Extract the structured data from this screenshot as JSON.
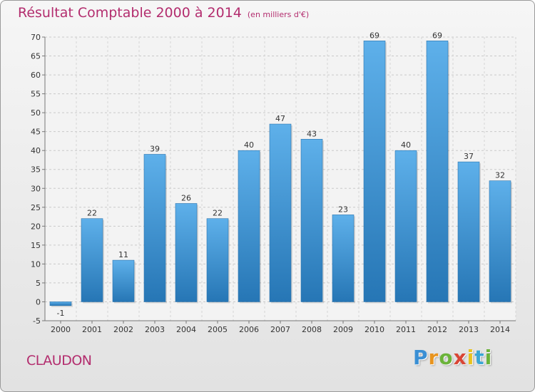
{
  "title": "Résultat Comptable 2000 à 2014",
  "subtitle": "(en milliers d'€)",
  "place": "CLAUDON",
  "logo": {
    "letters": [
      "P",
      "r",
      "o",
      "x",
      "i",
      "t",
      "i"
    ],
    "colors": [
      "#3a8fd4",
      "#e8941e",
      "#6bb33a",
      "#d94535",
      "#e8c21e",
      "#3aa6d4",
      "#6bb33a"
    ]
  },
  "chart_data": {
    "type": "bar",
    "categories": [
      "2000",
      "2001",
      "2002",
      "2003",
      "2004",
      "2005",
      "2006",
      "2007",
      "2008",
      "2009",
      "2010",
      "2011",
      "2012",
      "2013",
      "2014"
    ],
    "values": [
      -1,
      22,
      11,
      39,
      26,
      22,
      40,
      47,
      43,
      23,
      69,
      40,
      69,
      37,
      32
    ],
    "data_labels": [
      "-1",
      "22",
      "11",
      "39",
      "26",
      "22",
      "40",
      "47",
      "43",
      "23",
      "69",
      "40",
      "69",
      "37",
      "32"
    ],
    "ylim": [
      -5,
      70
    ],
    "yticks": [
      -5,
      0,
      5,
      10,
      15,
      20,
      25,
      30,
      35,
      40,
      45,
      50,
      55,
      60,
      65,
      70
    ],
    "grid": true,
    "bar_color_light": "#5eb0ea",
    "bar_color_dark": "#2676b5"
  }
}
